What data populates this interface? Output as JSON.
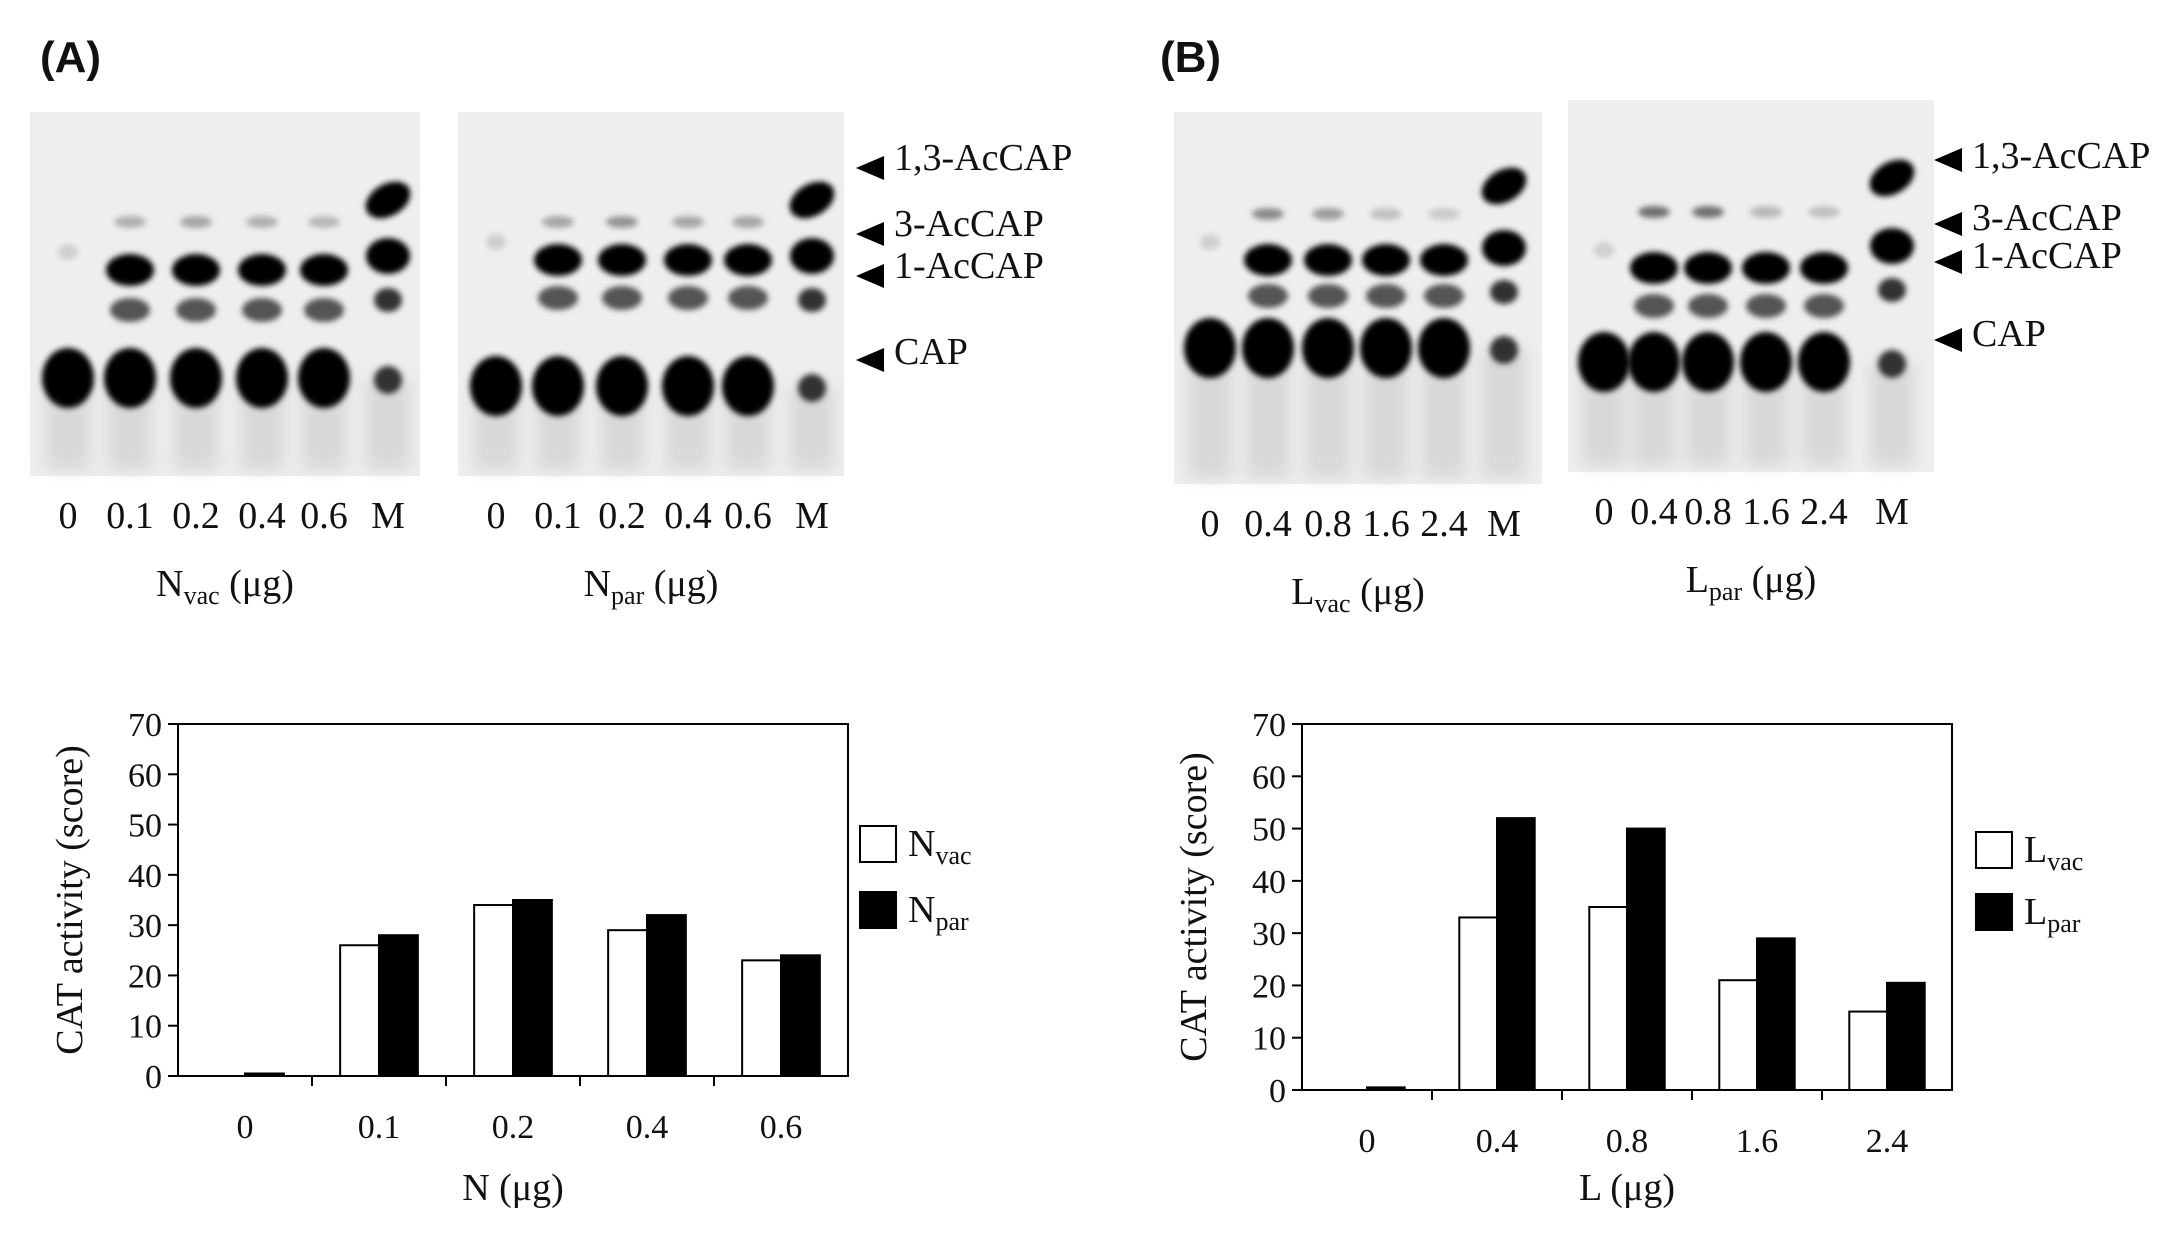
{
  "panels": [
    {
      "label": "(A)",
      "gel_lanes": [
        "0",
        "0.1",
        "0.2",
        "0.4",
        "0.6",
        "M"
      ],
      "gels": [
        {
          "caption_main": "N",
          "caption_sub": "vac",
          "caption_unit": " (μg)"
        },
        {
          "caption_main": "N",
          "caption_sub": "par",
          "caption_unit": " (μg)"
        }
      ],
      "band_labels": [
        "1,3-AcCAP",
        "3-AcCAP",
        "1-AcCAP",
        "CAP"
      ]
    },
    {
      "label": "(B)",
      "gel_lanes": [
        "0",
        "0.4",
        "0.8",
        "1.6",
        "2.4",
        "M"
      ],
      "gels": [
        {
          "caption_main": "L",
          "caption_sub": "vac",
          "caption_unit": " (μg)"
        },
        {
          "caption_main": "L",
          "caption_sub": "par",
          "caption_unit": " (μg)"
        }
      ],
      "band_labels": [
        "1,3-AcCAP",
        "3-AcCAP",
        "1-AcCAP",
        "CAP"
      ]
    }
  ],
  "chart_data": [
    {
      "type": "bar",
      "categories": [
        "0",
        "0.1",
        "0.2",
        "0.4",
        "0.6"
      ],
      "series": [
        {
          "name": "N",
          "name_sub": "vac",
          "fill": "#ffffff",
          "values": [
            0,
            26,
            34,
            29,
            23
          ]
        },
        {
          "name": "N",
          "name_sub": "par",
          "fill": "#000000",
          "values": [
            0.5,
            28,
            35,
            32,
            24
          ]
        }
      ],
      "ylabel": "CAT activity (score)",
      "xlabel": "N   (μg)",
      "ylim": [
        0,
        70
      ],
      "yticks": [
        "0",
        "10",
        "20",
        "30",
        "40",
        "50",
        "60",
        "70"
      ],
      "legend": "right",
      "grid": false
    },
    {
      "type": "bar",
      "categories": [
        "0",
        "0.4",
        "0.8",
        "1.6",
        "2.4"
      ],
      "series": [
        {
          "name": "L",
          "name_sub": "vac",
          "fill": "#ffffff",
          "values": [
            0,
            33,
            35,
            21,
            15
          ]
        },
        {
          "name": "L",
          "name_sub": "par",
          "fill": "#000000",
          "values": [
            0.5,
            52,
            50,
            29,
            20.5
          ]
        }
      ],
      "ylabel": "CAT activity (score)",
      "xlabel": "L   (μg)",
      "ylim": [
        0,
        70
      ],
      "yticks": [
        "0",
        "10",
        "20",
        "30",
        "40",
        "50",
        "60",
        "70"
      ],
      "legend": "right",
      "grid": false
    }
  ]
}
